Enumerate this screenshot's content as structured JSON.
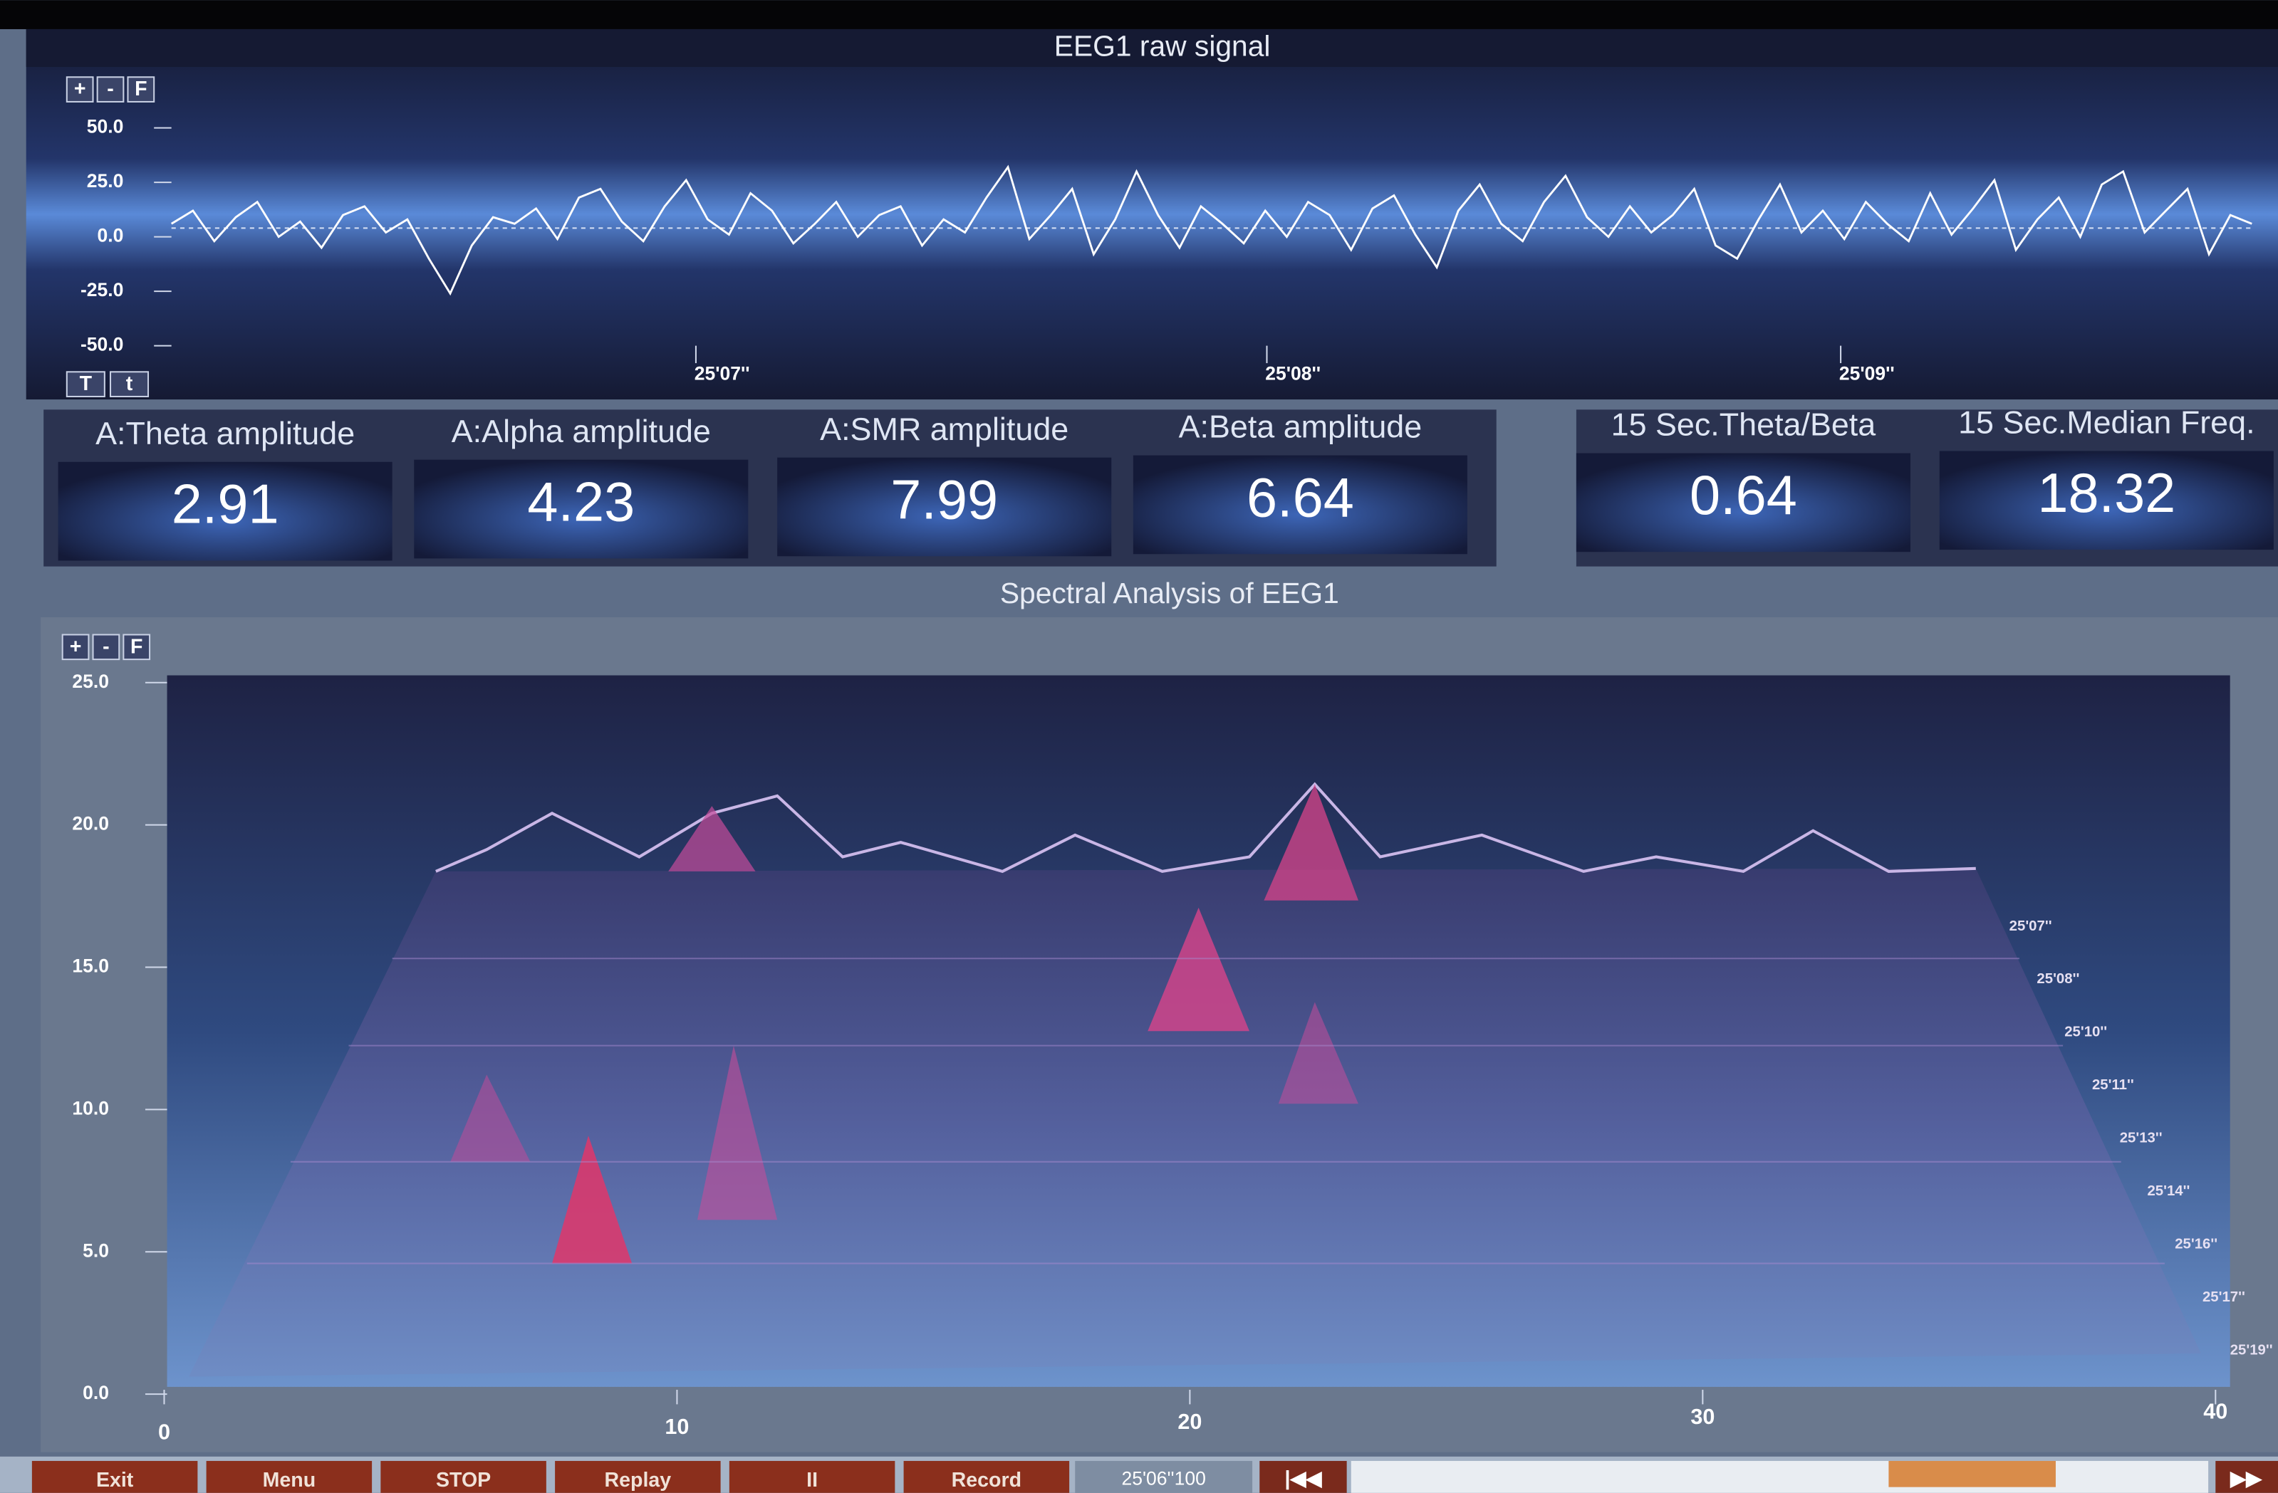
{
  "raw_signal": {
    "title": "EEG1 raw signal",
    "zoom_buttons": [
      "+",
      "-",
      "F"
    ],
    "time_buttons": [
      "T",
      "t"
    ],
    "ylim": [
      -50,
      50
    ],
    "yticks": [
      {
        "value": 50,
        "label": "50.0"
      },
      {
        "value": 25,
        "label": "25.0"
      },
      {
        "value": 0,
        "label": "0.0"
      },
      {
        "value": -25,
        "label": "-25.0"
      },
      {
        "value": -50,
        "label": "-50.0"
      }
    ],
    "xtick_labels": [
      "25'07''",
      "25'08''",
      "25'09''"
    ],
    "color": "#ffffff",
    "values": [
      2,
      8,
      -6,
      5,
      12,
      -4,
      3,
      -9,
      6,
      10,
      -2,
      4,
      -14,
      -30,
      -8,
      5,
      2,
      9,
      -5,
      14,
      18,
      3,
      -6,
      10,
      22,
      4,
      -3,
      16,
      8,
      -7,
      2,
      12,
      -4,
      6,
      10,
      -8,
      4,
      -2,
      14,
      28,
      -5,
      6,
      18,
      -12,
      4,
      26,
      6,
      -9,
      10,
      2,
      -7,
      8,
      -4,
      12,
      6,
      -10,
      9,
      15,
      -3,
      -18,
      8,
      20,
      2,
      -6,
      12,
      24,
      5,
      -4,
      10,
      -2,
      6,
      18,
      -8,
      -14,
      4,
      20,
      -2,
      8,
      -5,
      12,
      2,
      -6,
      16,
      -3,
      9,
      22,
      -10,
      4,
      14,
      -4,
      20,
      26,
      -2,
      8,
      18,
      -12,
      6,
      2
    ]
  },
  "metrics": [
    {
      "label": "A:Theta amplitude",
      "value": 2.91
    },
    {
      "label": "A:Alpha amplitude",
      "value": 4.23
    },
    {
      "label": "A:SMR amplitude",
      "value": 7.99
    },
    {
      "label": "A:Beta amplitude",
      "value": 6.64
    },
    {
      "label": "15 Sec.Theta/Beta",
      "value": 0.64
    },
    {
      "label": "15 Sec.Median Freq.",
      "value": 18.32
    }
  ],
  "spectral": {
    "title": "Spectral Analysis of EEG1",
    "zoom_buttons": [
      "+",
      "-",
      "F"
    ],
    "xlim": [
      0,
      40
    ],
    "xticks": [
      0,
      10,
      20,
      30,
      40
    ],
    "ylim": [
      0,
      25
    ],
    "yticks": [
      {
        "value": 0,
        "label": "0.0"
      },
      {
        "value": 5,
        "label": "5.0"
      },
      {
        "value": 10,
        "label": "10.0"
      },
      {
        "value": 15,
        "label": "15.0"
      },
      {
        "value": 20,
        "label": "20.0"
      },
      {
        "value": 25,
        "label": "25.0"
      }
    ],
    "time_labels": [
      "25'07''",
      "25'08''",
      "25'10''",
      "25'11''",
      "25'13''",
      "25'14''",
      "25'16''",
      "25'17''",
      "25'19''"
    ]
  },
  "toolbar": {
    "buttons": [
      "Exit",
      "Menu",
      "STOP",
      "Replay",
      "II",
      "Record"
    ],
    "time": "25'06''100"
  }
}
